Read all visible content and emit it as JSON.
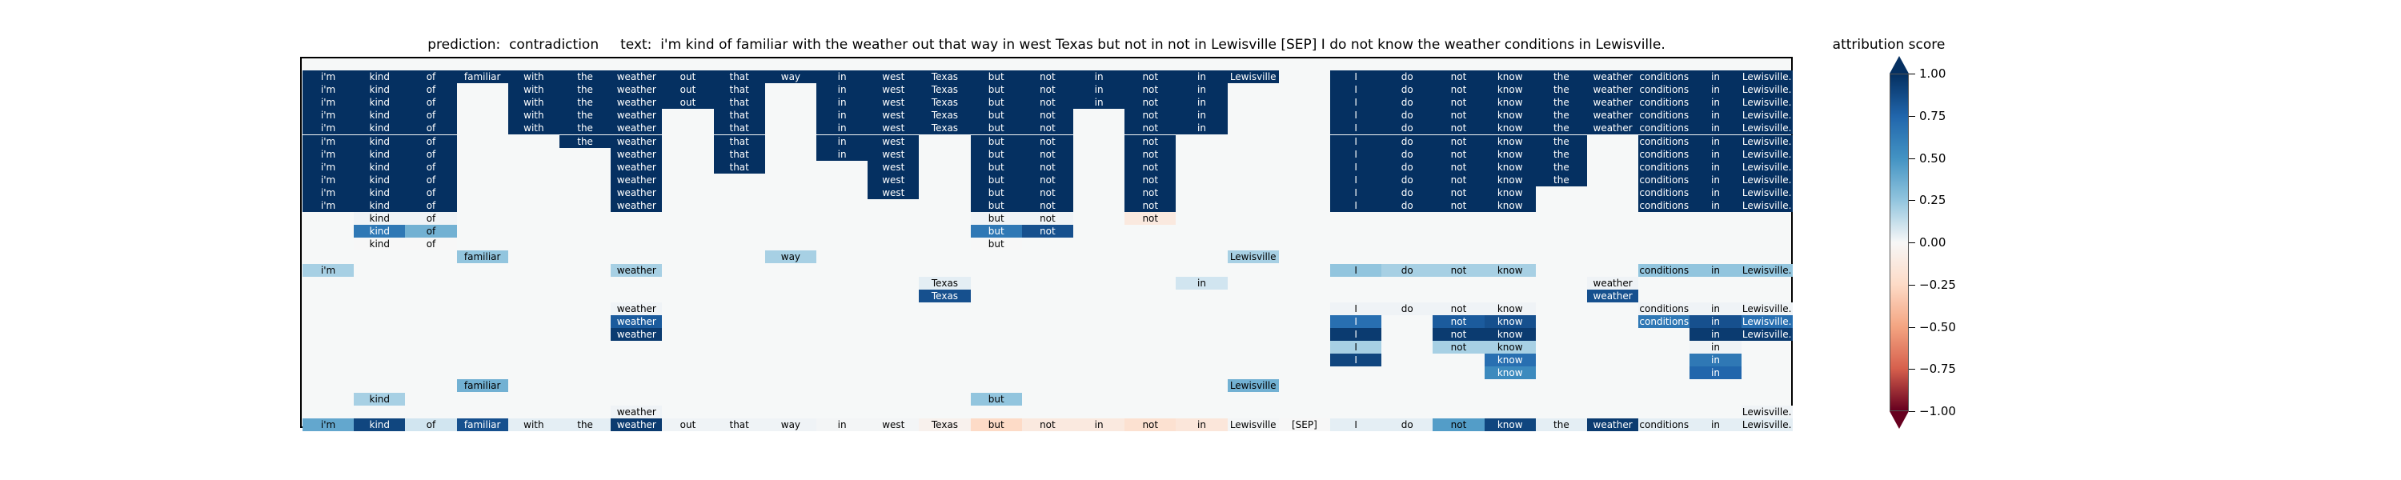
{
  "chart_data": {
    "type": "heatmap",
    "title": "prediction:  contradiction     text:  i'm kind of familiar with the weather out that way in west Texas but not in not in Lewisville [SEP] I do not know the weather conditions in Lewisville.",
    "tokens": [
      "i'm",
      "kind",
      "of",
      "familiar",
      "with",
      "the",
      "weather",
      "out",
      "that",
      "way",
      "in",
      "west",
      "Texas",
      "but",
      "not",
      "in",
      "not",
      "in",
      "Lewisville",
      "[SEP]",
      "I",
      "do",
      "not",
      "know",
      "the",
      "weather",
      "conditions",
      "in",
      "Lewisville."
    ],
    "colorbar": {
      "title": "attribution score",
      "min": -1.0,
      "max": 1.0,
      "ticks": [
        "1.00",
        "0.75",
        "0.50",
        "0.25",
        "0.00",
        "−0.25",
        "−0.50",
        "−0.75",
        "−1.00"
      ],
      "colormap": "RdBu"
    },
    "rows": [
      {
        "cells": [
          [
            0,
            1
          ],
          [
            1,
            1
          ],
          [
            2,
            1
          ],
          [
            3,
            1
          ],
          [
            4,
            1
          ],
          [
            5,
            1
          ],
          [
            6,
            1
          ],
          [
            7,
            1
          ],
          [
            8,
            1
          ],
          [
            9,
            1
          ],
          [
            10,
            1
          ],
          [
            11,
            1
          ],
          [
            12,
            1
          ],
          [
            13,
            1
          ],
          [
            14,
            1
          ],
          [
            15,
            1
          ],
          [
            16,
            1
          ],
          [
            17,
            1
          ],
          [
            18,
            1
          ],
          [
            20,
            1
          ],
          [
            21,
            1
          ],
          [
            22,
            1
          ],
          [
            23,
            1
          ],
          [
            24,
            1
          ],
          [
            25,
            1
          ],
          [
            26,
            1
          ],
          [
            27,
            1
          ],
          [
            28,
            1
          ]
        ]
      },
      {
        "cells": [
          [
            0,
            1
          ],
          [
            1,
            1
          ],
          [
            2,
            1
          ],
          [
            4,
            1
          ],
          [
            5,
            1
          ],
          [
            6,
            1
          ],
          [
            7,
            1
          ],
          [
            8,
            1
          ],
          [
            10,
            1
          ],
          [
            11,
            1
          ],
          [
            12,
            1
          ],
          [
            13,
            1
          ],
          [
            14,
            1
          ],
          [
            15,
            1
          ],
          [
            16,
            1
          ],
          [
            17,
            1
          ],
          [
            20,
            1
          ],
          [
            21,
            1
          ],
          [
            22,
            1
          ],
          [
            23,
            1
          ],
          [
            24,
            1
          ],
          [
            25,
            1
          ],
          [
            26,
            1
          ],
          [
            27,
            1
          ],
          [
            28,
            1
          ]
        ]
      },
      {
        "cells": [
          [
            0,
            1
          ],
          [
            1,
            1
          ],
          [
            2,
            1
          ],
          [
            4,
            1
          ],
          [
            5,
            1
          ],
          [
            6,
            1
          ],
          [
            7,
            1
          ],
          [
            8,
            1
          ],
          [
            10,
            1
          ],
          [
            11,
            1
          ],
          [
            12,
            1
          ],
          [
            13,
            1
          ],
          [
            14,
            1
          ],
          [
            15,
            1
          ],
          [
            16,
            1
          ],
          [
            17,
            1
          ],
          [
            20,
            1
          ],
          [
            21,
            1
          ],
          [
            22,
            1
          ],
          [
            23,
            1
          ],
          [
            24,
            1
          ],
          [
            25,
            1
          ],
          [
            26,
            1
          ],
          [
            27,
            1
          ],
          [
            28,
            1
          ]
        ]
      },
      {
        "cells": [
          [
            0,
            1
          ],
          [
            1,
            1
          ],
          [
            2,
            1
          ],
          [
            4,
            1
          ],
          [
            5,
            1
          ],
          [
            6,
            1
          ],
          [
            8,
            1
          ],
          [
            10,
            1
          ],
          [
            11,
            1
          ],
          [
            12,
            1
          ],
          [
            13,
            1
          ],
          [
            14,
            1
          ],
          [
            16,
            1
          ],
          [
            17,
            1
          ],
          [
            20,
            1
          ],
          [
            21,
            1
          ],
          [
            22,
            1
          ],
          [
            23,
            1
          ],
          [
            24,
            1
          ],
          [
            25,
            1
          ],
          [
            26,
            1
          ],
          [
            27,
            1
          ],
          [
            28,
            1
          ]
        ]
      },
      {
        "cells": [
          [
            0,
            1
          ],
          [
            1,
            1
          ],
          [
            2,
            1
          ],
          [
            4,
            1
          ],
          [
            5,
            1
          ],
          [
            6,
            1
          ],
          [
            8,
            1
          ],
          [
            10,
            1
          ],
          [
            11,
            1
          ],
          [
            12,
            1
          ],
          [
            13,
            1
          ],
          [
            14,
            1
          ],
          [
            16,
            1
          ],
          [
            17,
            1
          ],
          [
            20,
            1
          ],
          [
            21,
            1
          ],
          [
            22,
            1
          ],
          [
            23,
            1
          ],
          [
            24,
            1
          ],
          [
            25,
            1
          ],
          [
            26,
            1
          ],
          [
            27,
            1
          ],
          [
            28,
            1
          ]
        ]
      },
      {
        "cells": [
          [
            0,
            1
          ],
          [
            1,
            1
          ],
          [
            2,
            1
          ],
          [
            5,
            1
          ],
          [
            6,
            1
          ],
          [
            8,
            1
          ],
          [
            10,
            1
          ],
          [
            11,
            1
          ],
          [
            13,
            1
          ],
          [
            14,
            1
          ],
          [
            16,
            1
          ],
          [
            20,
            1
          ],
          [
            21,
            1
          ],
          [
            22,
            1
          ],
          [
            23,
            1
          ],
          [
            24,
            1
          ],
          [
            26,
            1
          ],
          [
            27,
            1
          ],
          [
            28,
            1
          ]
        ]
      },
      {
        "cells": [
          [
            0,
            1
          ],
          [
            1,
            1
          ],
          [
            2,
            1
          ],
          [
            6,
            1
          ],
          [
            8,
            1
          ],
          [
            10,
            1
          ],
          [
            11,
            1
          ],
          [
            13,
            1
          ],
          [
            14,
            1
          ],
          [
            16,
            1
          ],
          [
            20,
            1
          ],
          [
            21,
            1
          ],
          [
            22,
            1
          ],
          [
            23,
            1
          ],
          [
            24,
            1
          ],
          [
            26,
            1
          ],
          [
            27,
            1
          ],
          [
            28,
            1
          ]
        ]
      },
      {
        "cells": [
          [
            0,
            1
          ],
          [
            1,
            1
          ],
          [
            2,
            1
          ],
          [
            6,
            1
          ],
          [
            8,
            1
          ],
          [
            11,
            1
          ],
          [
            13,
            1
          ],
          [
            14,
            1
          ],
          [
            16,
            1
          ],
          [
            20,
            1
          ],
          [
            21,
            1
          ],
          [
            22,
            1
          ],
          [
            23,
            1
          ],
          [
            24,
            1
          ],
          [
            26,
            1
          ],
          [
            27,
            1
          ],
          [
            28,
            1
          ]
        ]
      },
      {
        "cells": [
          [
            0,
            1
          ],
          [
            1,
            1
          ],
          [
            2,
            1
          ],
          [
            6,
            1
          ],
          [
            11,
            1
          ],
          [
            13,
            1
          ],
          [
            14,
            1
          ],
          [
            16,
            1
          ],
          [
            20,
            1
          ],
          [
            21,
            1
          ],
          [
            22,
            1
          ],
          [
            23,
            1
          ],
          [
            24,
            1
          ],
          [
            26,
            1
          ],
          [
            27,
            1
          ],
          [
            28,
            1
          ]
        ]
      },
      {
        "cells": [
          [
            0,
            1
          ],
          [
            1,
            1
          ],
          [
            2,
            1
          ],
          [
            6,
            1
          ],
          [
            11,
            1
          ],
          [
            13,
            1
          ],
          [
            14,
            1
          ],
          [
            16,
            1
          ],
          [
            20,
            1
          ],
          [
            21,
            1
          ],
          [
            22,
            1
          ],
          [
            23,
            1
          ],
          [
            26,
            1
          ],
          [
            27,
            1
          ],
          [
            28,
            1
          ]
        ]
      },
      {
        "cells": [
          [
            0,
            1
          ],
          [
            1,
            1
          ],
          [
            2,
            1
          ],
          [
            6,
            1
          ],
          [
            13,
            1
          ],
          [
            14,
            1
          ],
          [
            16,
            1
          ],
          [
            20,
            1
          ],
          [
            21,
            1
          ],
          [
            22,
            1
          ],
          [
            23,
            1
          ],
          [
            26,
            1
          ],
          [
            27,
            1
          ],
          [
            28,
            1
          ]
        ]
      },
      {
        "cells": [
          [
            1,
            0.02
          ],
          [
            2,
            0.02
          ],
          [
            13,
            0.02
          ],
          [
            14,
            0.02
          ],
          [
            16,
            -0.05
          ]
        ]
      },
      {
        "cells": [
          [
            1,
            0.65
          ],
          [
            2,
            0.35
          ],
          [
            13,
            0.65
          ],
          [
            14,
            0.85
          ]
        ]
      },
      {
        "cells": [
          [
            1,
            0
          ],
          [
            2,
            0
          ],
          [
            13,
            0
          ]
        ]
      },
      {
        "cells": [
          [
            3,
            0.25
          ],
          [
            9,
            0.2
          ],
          [
            18,
            0.2
          ]
        ]
      },
      {
        "cells": [
          [
            0,
            0.2
          ],
          [
            6,
            0.2
          ],
          [
            20,
            0.25
          ],
          [
            21,
            0.2
          ],
          [
            22,
            0.2
          ],
          [
            23,
            0.2
          ],
          [
            26,
            0.25
          ],
          [
            27,
            0.25
          ],
          [
            28,
            0.25
          ]
        ]
      },
      {
        "cells": [
          [
            12,
            0.05
          ],
          [
            17,
            0.1
          ],
          [
            25,
            0.02
          ]
        ]
      },
      {
        "cells": [
          [
            12,
            0.85
          ],
          [
            25,
            0.85
          ]
        ]
      },
      {
        "cells": [
          [
            6,
            0.02
          ],
          [
            20,
            0.02
          ],
          [
            21,
            0.02
          ],
          [
            22,
            0.02
          ],
          [
            23,
            0.02
          ],
          [
            26,
            0.02
          ],
          [
            27,
            0.02
          ],
          [
            28,
            0.02
          ]
        ]
      },
      {
        "cells": [
          [
            6,
            0.8
          ],
          [
            20,
            0.7
          ],
          [
            22,
            0.8
          ],
          [
            23,
            0.85
          ],
          [
            26,
            0.65
          ],
          [
            27,
            0.85
          ],
          [
            28,
            0.7
          ]
        ]
      },
      {
        "cells": [
          [
            6,
            0.95
          ],
          [
            20,
            0.95
          ],
          [
            22,
            0.95
          ],
          [
            23,
            0.95
          ],
          [
            27,
            0.95
          ],
          [
            28,
            0.95
          ]
        ]
      },
      {
        "cells": [
          [
            20,
            0.2
          ],
          [
            22,
            0.2
          ],
          [
            23,
            0.2
          ],
          [
            27,
            0.02
          ]
        ]
      },
      {
        "cells": [
          [
            20,
            0.9
          ],
          [
            23,
            0.7
          ],
          [
            27,
            0.65
          ]
        ]
      },
      {
        "cells": [
          [
            23,
            0.55
          ],
          [
            27,
            0.75
          ]
        ]
      },
      {
        "cells": [
          [
            3,
            0.35
          ],
          [
            18,
            0.35
          ]
        ]
      },
      {
        "cells": [
          [
            1,
            0.2
          ],
          [
            13,
            0.25
          ]
        ]
      },
      {
        "cells": [
          [
            6,
            0.02
          ],
          [
            28,
            0.02
          ]
        ]
      },
      {
        "cells": [
          [
            0,
            0.4
          ],
          [
            1,
            0.9
          ],
          [
            2,
            0.1
          ],
          [
            3,
            0.85
          ],
          [
            4,
            0.05
          ],
          [
            5,
            0.05
          ],
          [
            6,
            0.95
          ],
          [
            7,
            0.02
          ],
          [
            8,
            0.02
          ],
          [
            9,
            0.02
          ],
          [
            10,
            0.01
          ],
          [
            11,
            0.01
          ],
          [
            12,
            -0.02
          ],
          [
            13,
            -0.1
          ],
          [
            14,
            -0.05
          ],
          [
            15,
            -0.05
          ],
          [
            16,
            -0.08
          ],
          [
            17,
            -0.06
          ],
          [
            18,
            0.01
          ],
          [
            19,
            0.0
          ],
          [
            20,
            0.05
          ],
          [
            21,
            0.05
          ],
          [
            22,
            0.45
          ],
          [
            23,
            0.9
          ],
          [
            24,
            0.05
          ],
          [
            25,
            0.95
          ],
          [
            26,
            0.05
          ],
          [
            27,
            0.05
          ],
          [
            28,
            0.05
          ]
        ]
      }
    ]
  }
}
